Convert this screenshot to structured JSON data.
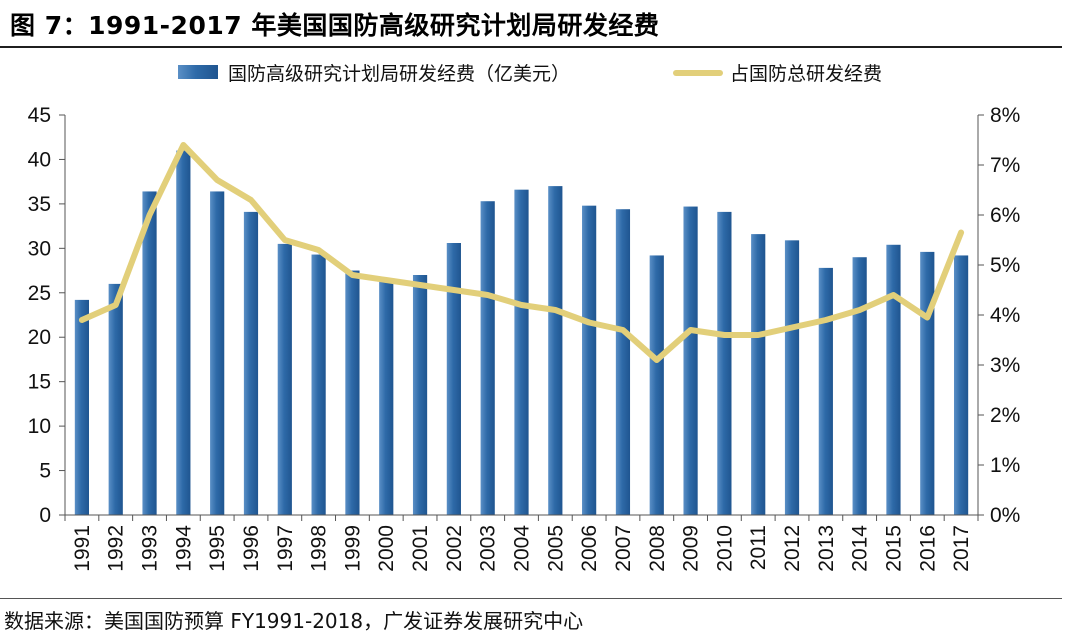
{
  "title": "图 7：1991-2017 年美国国防高级研究计划局研发经费",
  "source": "数据来源：美国国防预算 FY1991-2018，广发证券发展研究中心",
  "colors": {
    "bar": "#2e6aa8",
    "line": "#e2cf7a"
  },
  "chart_data": {
    "type": "bar",
    "categories": [
      "1991",
      "1992",
      "1993",
      "1994",
      "1995",
      "1996",
      "1997",
      "1998",
      "1999",
      "2000",
      "2001",
      "2002",
      "2003",
      "2004",
      "2005",
      "2006",
      "2007",
      "2008",
      "2009",
      "2010",
      "2011",
      "2012",
      "2013",
      "2014",
      "2015",
      "2016",
      "2017"
    ],
    "series": [
      {
        "name": "国防高级研究计划局研发经费（亿美元）",
        "type": "bar",
        "axis": "left",
        "values": [
          24.2,
          26.0,
          36.4,
          41.0,
          36.4,
          34.1,
          30.5,
          29.3,
          27.5,
          26.3,
          27.0,
          30.6,
          35.3,
          36.6,
          37.0,
          34.8,
          34.4,
          29.2,
          34.7,
          34.1,
          31.6,
          30.9,
          27.8,
          29.0,
          30.4,
          29.6,
          29.2
        ]
      },
      {
        "name": "占国防总研发经费",
        "type": "line",
        "axis": "right",
        "values": [
          3.9,
          4.2,
          6.0,
          7.4,
          6.7,
          6.3,
          5.5,
          5.3,
          4.8,
          4.7,
          4.6,
          4.5,
          4.4,
          4.2,
          4.1,
          3.85,
          3.7,
          3.1,
          3.7,
          3.6,
          3.6,
          3.75,
          3.9,
          4.1,
          4.4,
          3.95,
          5.65
        ]
      }
    ],
    "y_left": {
      "range": [
        0,
        45
      ],
      "ticks": [
        "0",
        "5",
        "10",
        "15",
        "20",
        "25",
        "30",
        "35",
        "40",
        "45"
      ]
    },
    "y_right": {
      "range": [
        0,
        8
      ],
      "ticks": [
        "0%",
        "1%",
        "2%",
        "3%",
        "4%",
        "5%",
        "6%",
        "7%",
        "8%"
      ]
    },
    "legend_position": "top",
    "grid": false
  }
}
